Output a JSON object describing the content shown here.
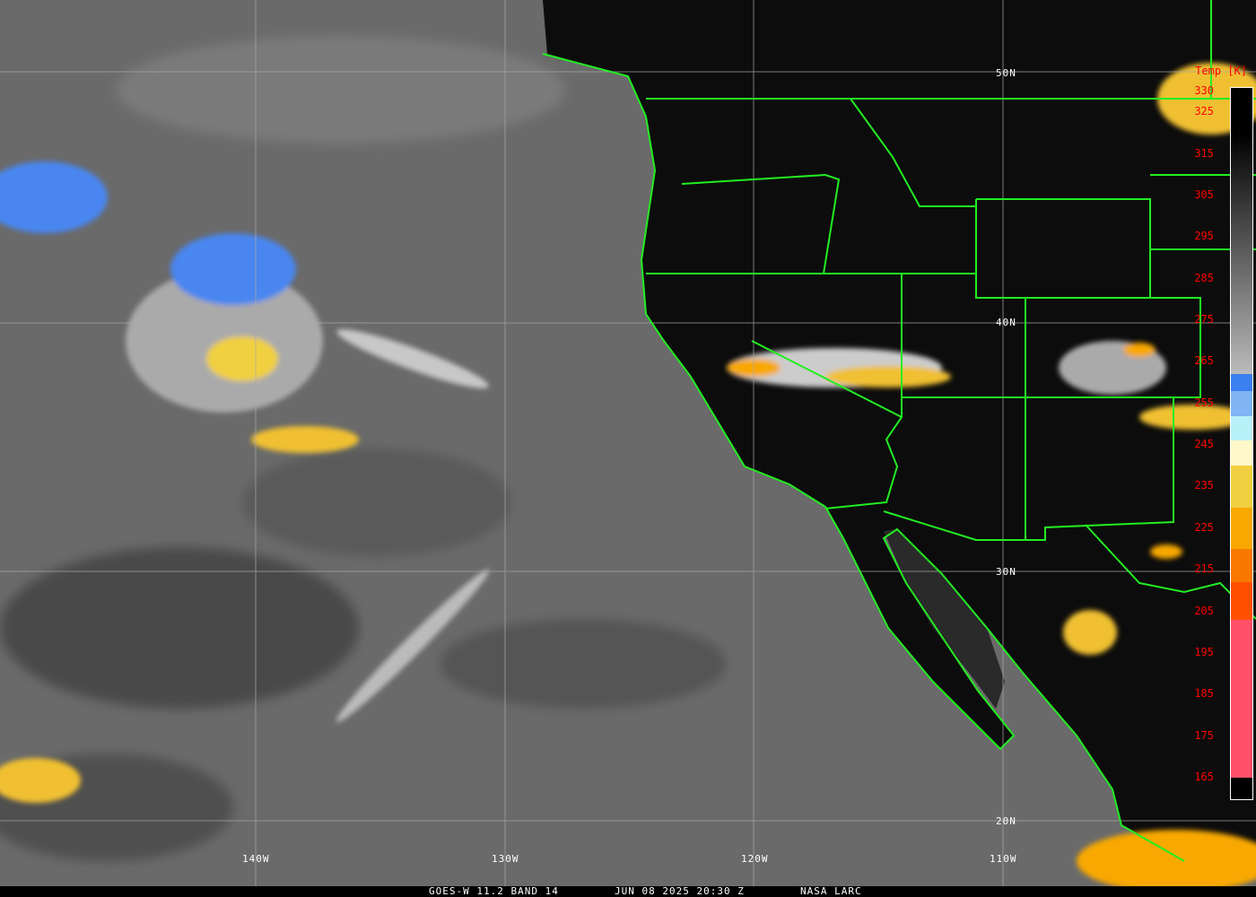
{
  "map": {
    "lat_labels": [
      "50N",
      "40N",
      "30N",
      "20N"
    ],
    "lon_labels": [
      "140W",
      "130W",
      "120W",
      "110W"
    ],
    "border_color": "#22ee22"
  },
  "legend": {
    "title": "Temp [K]",
    "ticks": [
      "330",
      "325",
      "315",
      "305",
      "295",
      "285",
      "275",
      "265",
      "255",
      "245",
      "235",
      "225",
      "215",
      "205",
      "195",
      "185",
      "175",
      "165"
    ],
    "color_scale": [
      {
        "from": 330,
        "to": 262,
        "color": "gradient black-to-gray"
      },
      {
        "from": 262,
        "to": 258,
        "color": "#3b7ff0"
      },
      {
        "from": 258,
        "to": 252,
        "color": "#7fb4f5"
      },
      {
        "from": 252,
        "to": 246,
        "color": "#b8f0f8"
      },
      {
        "from": 246,
        "to": 240,
        "color": "#fff8c8"
      },
      {
        "from": 240,
        "to": 230,
        "color": "#f0d040"
      },
      {
        "from": 230,
        "to": 220,
        "color": "#f8a800"
      },
      {
        "from": 220,
        "to": 212,
        "color": "#f87800"
      },
      {
        "from": 212,
        "to": 203,
        "color": "#ff5000"
      },
      {
        "from": 203,
        "to": 165,
        "color": "#ff5068"
      }
    ]
  },
  "footer": {
    "product": "GOES-W 11.2 BAND 14",
    "datetime": "JUN 08 2025 20:30 Z",
    "source": "NASA LARC"
  }
}
